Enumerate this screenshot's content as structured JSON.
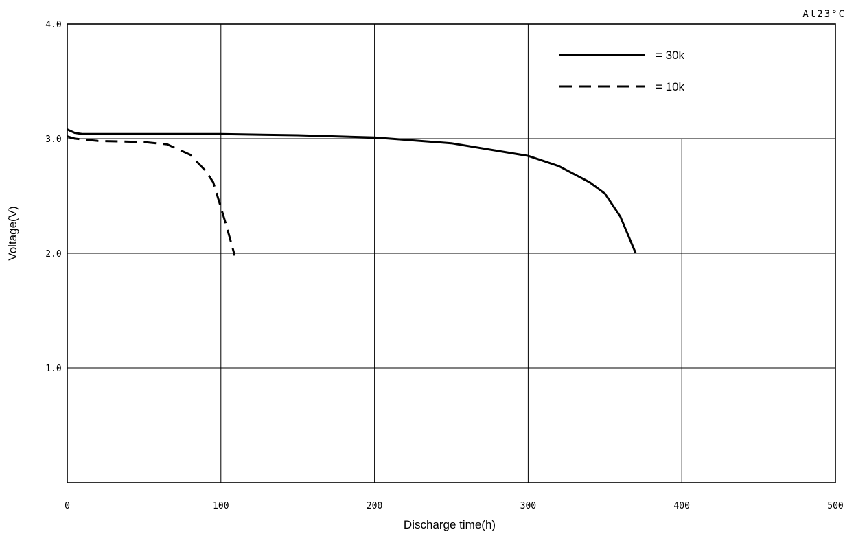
{
  "chart_data": {
    "type": "line",
    "annotation": "At23°C",
    "xlabel": "Discharge time(h)",
    "ylabel": "Voltage(V)",
    "xlim": [
      0,
      500
    ],
    "ylim": [
      0,
      4.0
    ],
    "x_ticks": [
      0,
      100,
      200,
      300,
      400,
      500
    ],
    "x_tick_labels": [
      "0",
      "100",
      "200",
      "300",
      "400",
      "500"
    ],
    "y_ticks": [
      1.0,
      2.0,
      3.0,
      4.0
    ],
    "y_tick_labels": [
      "1.0",
      "2.0",
      "3.0",
      "4.0"
    ],
    "grid": true,
    "legend_position": "top-right",
    "series": [
      {
        "name": "= 30k",
        "style": "solid",
        "x": [
          0,
          5,
          10,
          50,
          100,
          150,
          200,
          250,
          300,
          320,
          340,
          350,
          360,
          370
        ],
        "y": [
          3.08,
          3.05,
          3.04,
          3.04,
          3.04,
          3.03,
          3.01,
          2.96,
          2.85,
          2.76,
          2.62,
          2.52,
          2.32,
          2.0
        ]
      },
      {
        "name": "= 10k",
        "style": "dashed",
        "x": [
          0,
          5,
          20,
          50,
          65,
          80,
          90,
          95,
          100,
          104,
          109
        ],
        "y": [
          3.02,
          3.0,
          2.98,
          2.97,
          2.95,
          2.86,
          2.72,
          2.62,
          2.4,
          2.22,
          1.98
        ]
      }
    ],
    "colors": {
      "line": "#000000",
      "grid": "#000000"
    }
  }
}
